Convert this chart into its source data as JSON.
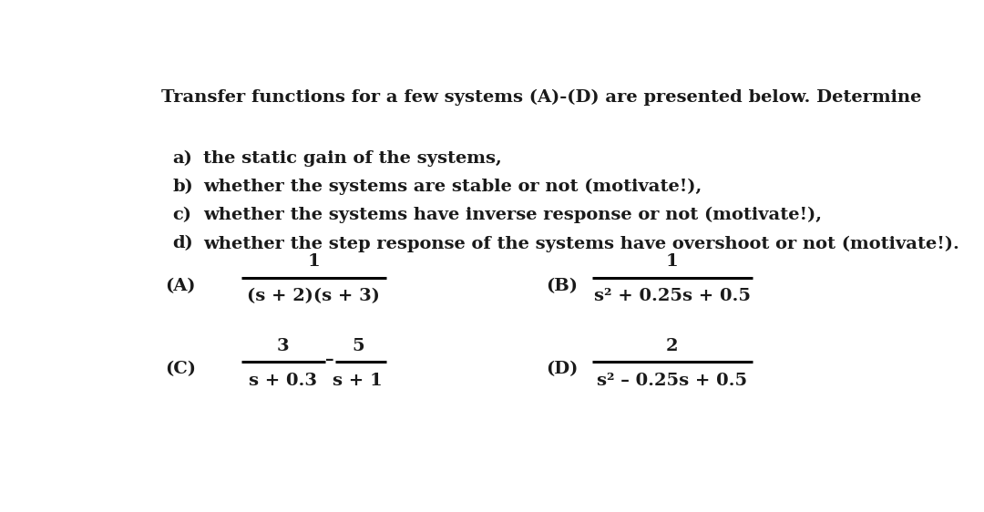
{
  "background_color": "#ffffff",
  "title_text": "Transfer functions for a few systems (A)-(D) are presented below. Determine",
  "title_fontsize": 14,
  "items": [
    {
      "label": "a)",
      "text": "the static gain of the systems,"
    },
    {
      "label": "b)",
      "text": "whether the systems are stable or not (motivate!),"
    },
    {
      "label": "c)",
      "text": "whether the systems have inverse response or not (motivate!),"
    },
    {
      "label": "d)",
      "text": "whether the step response of the systems have overshoot or not (motivate!)."
    }
  ],
  "item_fontsize": 14,
  "tf_fontsize": 14,
  "label_fontsize": 14,
  "font_weight": "bold",
  "font_family": "serif"
}
